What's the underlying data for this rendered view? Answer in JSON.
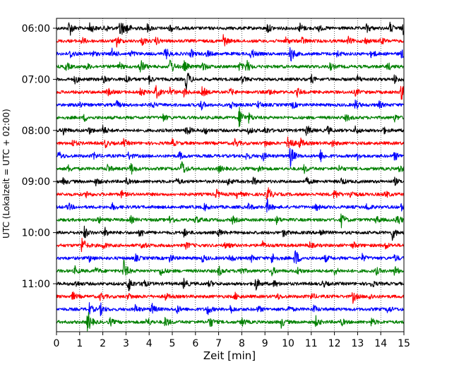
{
  "chart_data": {
    "type": "line",
    "title": "",
    "xlabel": "Zeit  [min]",
    "ylabel": "UTC (Lokalzeit = UTC + 02:00)",
    "xlim": [
      0,
      15
    ],
    "x_ticks": [
      0,
      1,
      2,
      3,
      4,
      5,
      6,
      7,
      8,
      9,
      10,
      11,
      12,
      13,
      14,
      15
    ],
    "x_tick_labels": [
      "0",
      "1",
      "2",
      "3",
      "4",
      "5",
      "6",
      "7",
      "8",
      "9",
      "10",
      "11",
      "12",
      "13",
      "14",
      "15"
    ],
    "y_tick_labels": [
      "06:00",
      "07:00",
      "08:00",
      "09:00",
      "10:00",
      "11:00"
    ],
    "y_tick_traces": [
      0,
      4,
      8,
      12,
      16,
      20
    ],
    "trace_minutes": 15,
    "grid": {
      "x": true,
      "style": "dotted"
    },
    "colors": [
      "#000000",
      "#ff0000",
      "#0000ff",
      "#008000"
    ],
    "series": [
      {
        "start": "06:00",
        "color": "#000000",
        "events": [
          [
            0.55,
            0.8
          ],
          [
            1.45,
            0.5
          ],
          [
            2.1,
            0.35
          ],
          [
            2.75,
            1.0
          ],
          [
            3.05,
            0.45
          ],
          [
            3.9,
            0.4
          ],
          [
            4.9,
            0.35
          ],
          [
            9.1,
            0.45
          ],
          [
            10.5,
            0.45
          ],
          [
            11.3,
            0.3
          ],
          [
            13.4,
            0.4
          ],
          [
            14.4,
            0.45
          ],
          [
            14.95,
            0.5
          ]
        ]
      },
      {
        "start": "06:15",
        "color": "#ff0000",
        "events": [
          [
            1.1,
            0.3
          ],
          [
            2.6,
            0.45
          ],
          [
            3.7,
            0.35
          ],
          [
            4.3,
            0.3
          ],
          [
            7.2,
            0.6
          ],
          [
            9.9,
            0.3
          ],
          [
            10.6,
            0.3
          ],
          [
            12.6,
            0.3
          ],
          [
            13.3,
            0.3
          ],
          [
            14.0,
            0.3
          ]
        ]
      },
      {
        "start": "06:30",
        "color": "#0000ff",
        "events": [
          [
            0.6,
            0.4
          ],
          [
            1.5,
            0.35
          ],
          [
            2.4,
            0.4
          ],
          [
            3.2,
            0.3
          ],
          [
            4.7,
            0.6
          ],
          [
            5.8,
            0.35
          ],
          [
            6.5,
            0.3
          ],
          [
            8.4,
            0.5
          ],
          [
            10.1,
            0.85
          ],
          [
            12.1,
            0.3
          ],
          [
            13.6,
            0.4
          ],
          [
            14.9,
            0.4
          ]
        ]
      },
      {
        "start": "06:45",
        "color": "#008000",
        "events": [
          [
            0.4,
            0.4
          ],
          [
            1.3,
            0.3
          ],
          [
            2.7,
            0.35
          ],
          [
            3.6,
            0.85
          ],
          [
            4.9,
            0.85
          ],
          [
            5.5,
            0.5
          ],
          [
            6.3,
            0.45
          ],
          [
            7.9,
            0.35
          ],
          [
            8.2,
            0.6
          ],
          [
            11.8,
            0.3
          ],
          [
            14.3,
            0.35
          ]
        ]
      },
      {
        "start": "07:00",
        "color": "#000000",
        "events": [
          [
            0.8,
            0.35
          ],
          [
            2.0,
            0.35
          ],
          [
            3.0,
            0.45
          ],
          [
            4.0,
            0.35
          ],
          [
            5.6,
            1.0
          ],
          [
            8.0,
            0.3
          ],
          [
            11.0,
            0.35
          ],
          [
            13.0,
            0.3
          ],
          [
            14.6,
            0.4
          ]
        ]
      },
      {
        "start": "07:15",
        "color": "#ff0000",
        "events": [
          [
            2.2,
            0.35
          ],
          [
            3.6,
            0.4
          ],
          [
            4.3,
            0.6
          ],
          [
            4.9,
            0.45
          ],
          [
            5.5,
            0.35
          ],
          [
            6.3,
            0.5
          ],
          [
            7.5,
            0.3
          ],
          [
            9.2,
            0.3
          ],
          [
            10.4,
            0.35
          ],
          [
            12.9,
            0.3
          ],
          [
            14.9,
            0.85
          ]
        ]
      },
      {
        "start": "07:30",
        "color": "#0000ff",
        "events": [
          [
            0.9,
            0.35
          ],
          [
            2.6,
            0.3
          ],
          [
            4.1,
            0.3
          ],
          [
            6.2,
            0.6
          ],
          [
            7.5,
            0.4
          ],
          [
            8.7,
            0.3
          ],
          [
            10.2,
            0.3
          ],
          [
            12.9,
            0.45
          ],
          [
            13.9,
            0.35
          ]
        ]
      },
      {
        "start": "07:45",
        "color": "#008000",
        "events": [
          [
            1.2,
            0.3
          ],
          [
            4.6,
            0.3
          ],
          [
            7.9,
            1.0
          ],
          [
            8.3,
            0.35
          ],
          [
            12.5,
            0.3
          ],
          [
            14.6,
            0.3
          ]
        ]
      },
      {
        "start": "08:00",
        "color": "#000000",
        "events": [
          [
            0.3,
            0.35
          ],
          [
            1.4,
            0.3
          ],
          [
            2.0,
            0.45
          ],
          [
            5.6,
            0.6
          ],
          [
            6.4,
            0.35
          ],
          [
            8.3,
            0.3
          ],
          [
            9.0,
            0.35
          ],
          [
            10.8,
            0.5
          ],
          [
            11.7,
            0.35
          ],
          [
            12.9,
            0.35
          ],
          [
            14.1,
            0.3
          ]
        ]
      },
      {
        "start": "08:15",
        "color": "#ff0000",
        "events": [
          [
            0.7,
            0.3
          ],
          [
            2.1,
            0.35
          ],
          [
            2.9,
            0.3
          ],
          [
            5.0,
            0.3
          ],
          [
            7.7,
            0.4
          ],
          [
            9.0,
            0.3
          ],
          [
            10.0,
            1.0
          ],
          [
            10.5,
            0.5
          ],
          [
            11.9,
            0.3
          ]
        ]
      },
      {
        "start": "08:30",
        "color": "#0000ff",
        "events": [
          [
            0.1,
            0.4
          ],
          [
            1.6,
            0.3
          ],
          [
            3.1,
            0.35
          ],
          [
            5.3,
            0.35
          ],
          [
            8.2,
            0.35
          ],
          [
            8.9,
            0.4
          ],
          [
            10.1,
            1.0
          ],
          [
            11.4,
            0.5
          ],
          [
            13.0,
            0.3
          ],
          [
            14.6,
            0.4
          ]
        ]
      },
      {
        "start": "08:45",
        "color": "#008000",
        "events": [
          [
            0.5,
            0.3
          ],
          [
            2.2,
            0.35
          ],
          [
            3.2,
            0.6
          ],
          [
            5.4,
            0.8
          ],
          [
            7.0,
            0.3
          ],
          [
            8.7,
            0.3
          ],
          [
            10.7,
            0.35
          ],
          [
            12.2,
            0.3
          ],
          [
            14.8,
            0.35
          ]
        ]
      },
      {
        "start": "09:00",
        "color": "#000000",
        "events": [
          [
            0.3,
            0.3
          ],
          [
            1.7,
            0.3
          ],
          [
            3.0,
            0.3
          ],
          [
            5.2,
            0.3
          ],
          [
            7.4,
            0.3
          ],
          [
            8.5,
            0.35
          ],
          [
            10.8,
            0.3
          ],
          [
            12.3,
            0.3
          ],
          [
            14.6,
            0.3
          ]
        ]
      },
      {
        "start": "09:15",
        "color": "#ff0000",
        "events": [
          [
            1.3,
            0.3
          ],
          [
            2.8,
            0.3
          ],
          [
            6.9,
            0.4
          ],
          [
            7.8,
            0.35
          ],
          [
            9.1,
            0.85
          ],
          [
            12.0,
            0.5
          ],
          [
            12.7,
            0.4
          ],
          [
            14.2,
            0.3
          ]
        ]
      },
      {
        "start": "09:30",
        "color": "#0000ff",
        "events": [
          [
            0.5,
            0.35
          ],
          [
            2.4,
            0.3
          ],
          [
            6.4,
            0.3
          ],
          [
            8.3,
            0.3
          ],
          [
            9.1,
            0.6
          ],
          [
            11.2,
            0.3
          ],
          [
            13.4,
            0.35
          ],
          [
            14.9,
            0.3
          ]
        ]
      },
      {
        "start": "09:45",
        "color": "#008000",
        "events": [
          [
            1.8,
            0.3
          ],
          [
            3.2,
            0.3
          ],
          [
            4.9,
            0.45
          ],
          [
            6.0,
            0.35
          ],
          [
            7.6,
            0.3
          ],
          [
            9.5,
            0.3
          ],
          [
            12.3,
            0.6
          ],
          [
            13.8,
            0.35
          ],
          [
            14.7,
            0.6
          ]
        ]
      },
      {
        "start": "10:00",
        "color": "#000000",
        "events": [
          [
            1.2,
            0.55
          ],
          [
            2.1,
            0.4
          ],
          [
            3.6,
            0.45
          ],
          [
            5.5,
            0.35
          ],
          [
            7.0,
            0.3
          ],
          [
            9.8,
            0.35
          ],
          [
            11.4,
            0.4
          ],
          [
            14.5,
            0.6
          ]
        ]
      },
      {
        "start": "10:15",
        "color": "#ff0000",
        "events": [
          [
            1.1,
            0.8
          ],
          [
            2.0,
            0.3
          ],
          [
            3.7,
            0.35
          ],
          [
            5.6,
            0.3
          ],
          [
            7.3,
            0.3
          ],
          [
            8.9,
            0.3
          ],
          [
            10.9,
            0.3
          ],
          [
            12.8,
            0.3
          ],
          [
            14.2,
            0.3
          ]
        ]
      },
      {
        "start": "10:30",
        "color": "#0000ff",
        "events": [
          [
            1.4,
            0.3
          ],
          [
            3.4,
            0.3
          ],
          [
            4.9,
            0.35
          ],
          [
            6.3,
            0.3
          ],
          [
            7.5,
            0.35
          ],
          [
            8.4,
            0.3
          ],
          [
            9.3,
            0.5
          ],
          [
            10.3,
            0.9
          ],
          [
            11.6,
            0.3
          ],
          [
            13.2,
            0.3
          ],
          [
            14.6,
            0.3
          ]
        ]
      },
      {
        "start": "10:45",
        "color": "#008000",
        "events": [
          [
            0.8,
            0.35
          ],
          [
            1.7,
            0.3
          ],
          [
            2.9,
            1.0
          ],
          [
            4.5,
            0.45
          ],
          [
            7.0,
            0.45
          ],
          [
            7.9,
            0.5
          ],
          [
            9.3,
            0.35
          ],
          [
            10.4,
            0.3
          ],
          [
            12.0,
            0.35
          ],
          [
            13.8,
            0.3
          ],
          [
            14.6,
            0.45
          ]
        ]
      },
      {
        "start": "11:00",
        "color": "#000000",
        "events": [
          [
            0.8,
            0.3
          ],
          [
            3.1,
            0.8
          ],
          [
            3.7,
            0.5
          ],
          [
            5.5,
            0.45
          ],
          [
            6.6,
            0.3
          ],
          [
            8.6,
            0.6
          ],
          [
            9.4,
            0.3
          ],
          [
            11.5,
            0.3
          ],
          [
            13.6,
            0.3
          ]
        ]
      },
      {
        "start": "11:15",
        "color": "#ff0000",
        "events": [
          [
            0.7,
            0.35
          ],
          [
            1.9,
            0.35
          ],
          [
            3.1,
            0.3
          ],
          [
            4.7,
            0.3
          ],
          [
            7.7,
            0.3
          ],
          [
            9.5,
            0.3
          ],
          [
            11.0,
            0.3
          ],
          [
            12.8,
            0.5
          ],
          [
            13.5,
            0.3
          ]
        ]
      },
      {
        "start": "11:30",
        "color": "#0000ff",
        "events": [
          [
            1.4,
            0.55
          ],
          [
            1.9,
            0.5
          ],
          [
            3.4,
            0.35
          ],
          [
            4.1,
            0.55
          ],
          [
            5.2,
            0.35
          ],
          [
            6.5,
            0.55
          ],
          [
            7.5,
            0.35
          ],
          [
            8.7,
            0.3
          ],
          [
            10.0,
            0.3
          ],
          [
            11.1,
            0.35
          ],
          [
            14.3,
            0.35
          ]
        ]
      },
      {
        "start": "11:45",
        "color": "#008000",
        "events": [
          [
            1.35,
            1.0
          ],
          [
            2.3,
            0.35
          ],
          [
            3.9,
            0.45
          ],
          [
            4.7,
            0.5
          ],
          [
            6.6,
            0.6
          ],
          [
            8.0,
            0.35
          ],
          [
            9.7,
            0.45
          ],
          [
            11.2,
            0.45
          ],
          [
            12.3,
            0.3
          ],
          [
            13.6,
            0.35
          ]
        ]
      }
    ]
  }
}
